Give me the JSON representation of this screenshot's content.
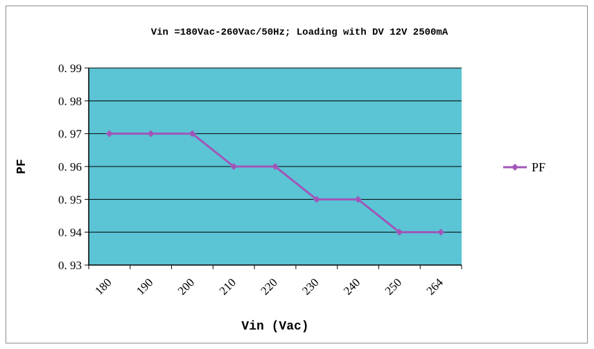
{
  "chart_data": {
    "type": "line",
    "title": "Vin =180Vac-260Vac/50Hz; Loading with DV 12V 2500mA",
    "xlabel": "Vin (Vac)",
    "ylabel": "PF",
    "categories": [
      "180",
      "190",
      "200",
      "210",
      "220",
      "230",
      "240",
      "250",
      "264"
    ],
    "series": [
      {
        "name": "PF",
        "values": [
          0.97,
          0.97,
          0.97,
          0.96,
          0.96,
          0.95,
          0.95,
          0.94,
          0.94
        ]
      }
    ],
    "ylim": [
      0.93,
      0.99
    ],
    "yticks": [
      0.99,
      0.98,
      0.97,
      0.96,
      0.95,
      0.94,
      0.93
    ],
    "ytick_labels": [
      "0. 99",
      "0. 98",
      "0. 97",
      "0. 96",
      "0. 95",
      "0. 94",
      "0. 93"
    ],
    "grid": "horizontal",
    "legend": "right",
    "colors": {
      "plot_bg": "#5bc4d5",
      "line": "#a056b8",
      "grid": "#000000"
    }
  }
}
